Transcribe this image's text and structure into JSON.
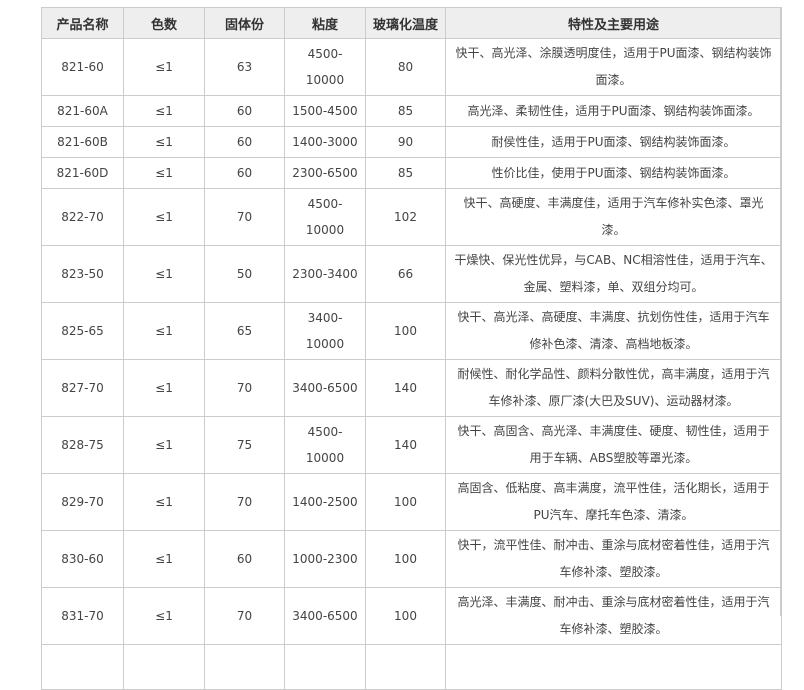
{
  "table": {
    "headers": [
      "产品名称",
      "色数",
      "固体份",
      "粘度",
      "玻璃化温度",
      "特性及主要用途"
    ],
    "rows": [
      [
        "821-60",
        "≤1",
        "63",
        "4500-10000",
        "80",
        "快干、高光泽、涂膜透明度佳，适用于PU面漆、钢结构装饰面漆。"
      ],
      [
        "821-60A",
        "≤1",
        "60",
        "1500-4500",
        "85",
        "高光泽、柔韧性佳，适用于PU面漆、钢结构装饰面漆。"
      ],
      [
        "821-60B",
        "≤1",
        "60",
        "1400-3000",
        "90",
        "耐侯性佳，适用于PU面漆、钢结构装饰面漆。"
      ],
      [
        "821-60D",
        "≤1",
        "60",
        "2300-6500",
        "85",
        "性价比佳，使用于PU面漆、钢结构装饰面漆。"
      ],
      [
        "822-70",
        "≤1",
        "70",
        "4500-10000",
        "102",
        "快干、高硬度、丰满度佳，适用于汽车修补实色漆、罩光漆。"
      ],
      [
        "823-50",
        "≤1",
        "50",
        "2300-3400",
        "66",
        "干燥快、保光性优异，与CAB、NC相溶性佳，适用于汽车、金属、塑料漆，单、双组分均可。"
      ],
      [
        "825-65",
        "≤1",
        "65",
        "3400-10000",
        "100",
        "快干、高光泽、高硬度、丰满度、抗划伤性佳，适用于汽车修补色漆、清漆、高档地板漆。"
      ],
      [
        "827-70",
        "≤1",
        "70",
        "3400-6500",
        "140",
        "耐候性、耐化学品性、颜料分散性优，高丰满度，适用于汽车修补漆、原厂漆(大巴及SUV)、运动器材漆。"
      ],
      [
        "828-75",
        "≤1",
        "75",
        "4500-10000",
        "140",
        "快干、高固含、高光泽、丰满度佳、硬度、韧性佳，适用于用于车辆、ABS塑胶等罩光漆。"
      ],
      [
        "829-70",
        "≤1",
        "70",
        "1400-2500",
        "100",
        "高固含、低粘度、高丰满度，流平性佳，活化期长，适用于PU汽车、摩托车色漆、清漆。"
      ],
      [
        "830-60",
        "≤1",
        "60",
        "1000-2300",
        "100",
        "快干，流平性佳、耐冲击、重涂与底材密着性佳，适用于汽车修补漆、塑胶漆。"
      ],
      [
        "831-70",
        "≤1",
        "70",
        "3400-6500",
        "100",
        "高光泽、丰满度、耐冲击、重涂与底材密着性佳，适用于汽车修补漆、塑胶漆。"
      ]
    ]
  }
}
